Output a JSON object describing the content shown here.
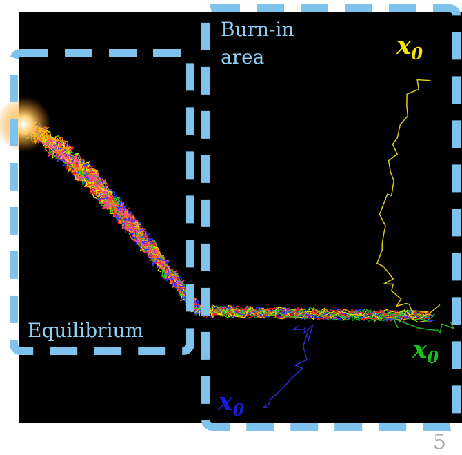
{
  "burn_in_label": [
    "Burn-in",
    "area"
  ],
  "equilibrium_label": "Equilibrium",
  "start_labels": [
    {
      "base": "x",
      "sub": "0",
      "color": "#f2e600"
    },
    {
      "base": "x",
      "sub": "0",
      "color": "#19c219"
    },
    {
      "base": "x",
      "sub": "0",
      "color": "#1a1adf"
    }
  ],
  "page_number": "5"
}
